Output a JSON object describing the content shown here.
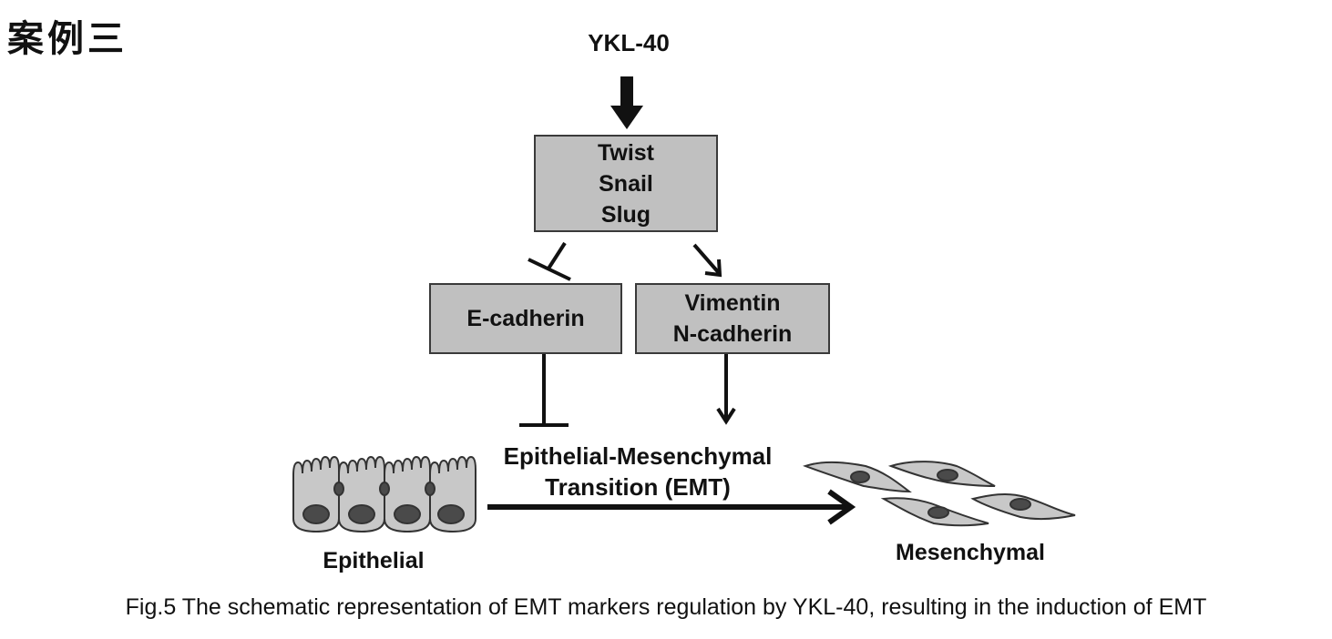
{
  "heading": "案例三",
  "diagram": {
    "top_node": "YKL-40",
    "tf_box": [
      "Twist",
      "Snail",
      "Slug"
    ],
    "left_box": "E-cadherin",
    "right_box": [
      "Vimentin",
      "N-cadherin"
    ],
    "process_label": [
      "Epithelial-Mesenchymal",
      "Transition (EMT)"
    ],
    "left_cell_label": "Epithelial",
    "right_cell_label": "Mesenchymal"
  },
  "caption": "Fig.5 The schematic representation of EMT markers regulation by YKL-40, resulting in the induction of EMT",
  "colors": {
    "box_fill": "#c0c0c0",
    "cell_fill": "#c8c8c8",
    "nucleus": "#4a4a4a",
    "ink": "#111111"
  }
}
